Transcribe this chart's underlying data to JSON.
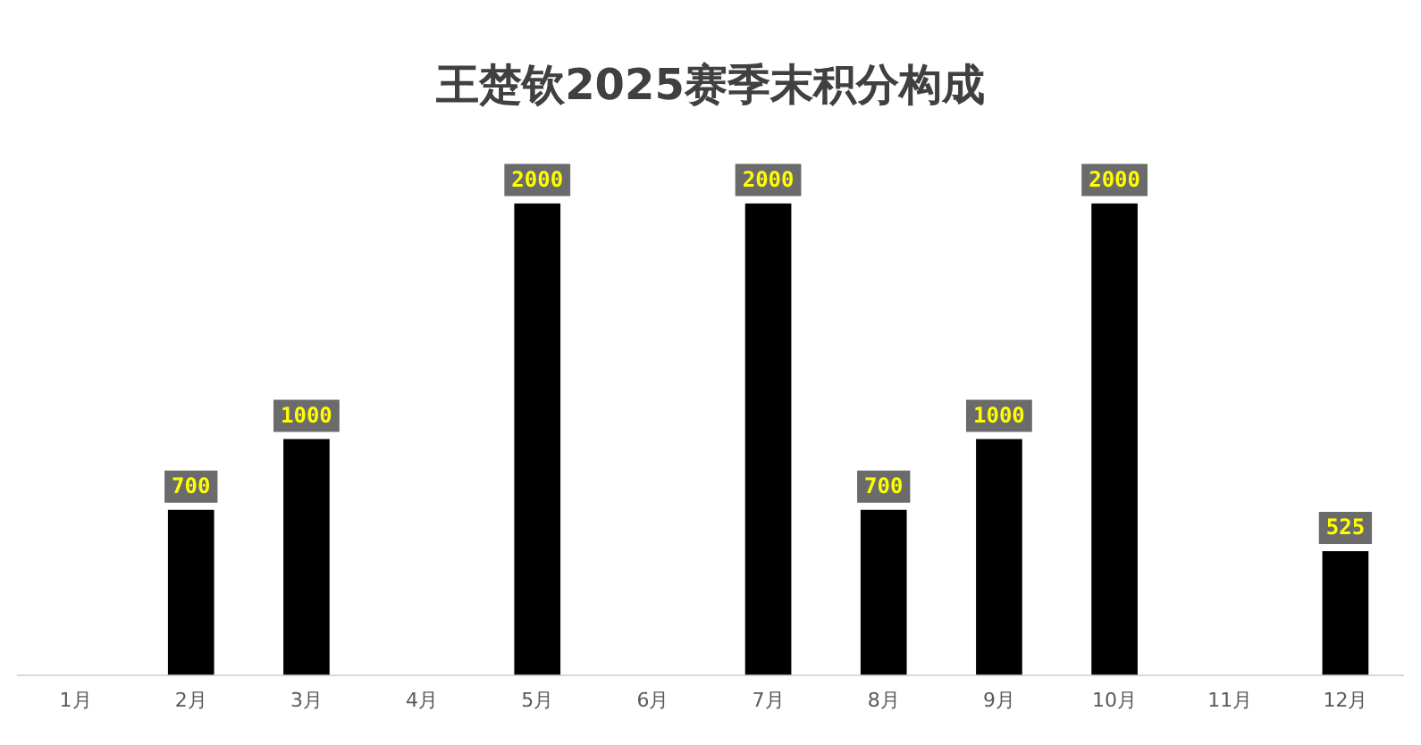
{
  "chart_data": {
    "type": "bar",
    "title": "王楚钦2025赛季末积分构成",
    "categories": [
      "1月",
      "2月",
      "3月",
      "4月",
      "5月",
      "6月",
      "7月",
      "8月",
      "9月",
      "10月",
      "11月",
      "12月"
    ],
    "values": [
      null,
      700,
      1000,
      null,
      2000,
      null,
      2000,
      700,
      1000,
      2000,
      null,
      525
    ],
    "color": "#000000",
    "data_labels": true,
    "grid": false,
    "legend": false
  }
}
